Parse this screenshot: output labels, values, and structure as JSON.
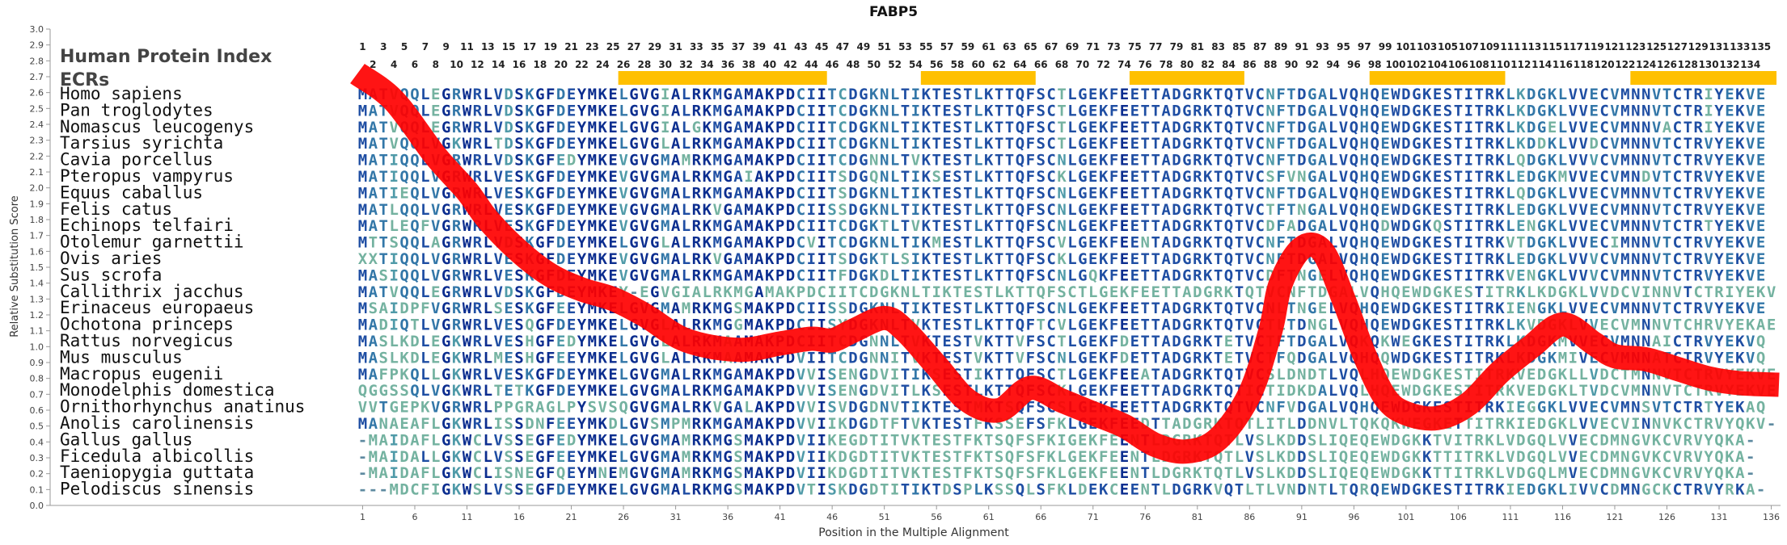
{
  "chart_data": {
    "type": "sequence-alignment",
    "title": "FABP5",
    "xlabel": "Position in the Multiple Alignment",
    "ylabel": "Relative Substitution Score",
    "ylim": [
      0,
      3.0
    ],
    "yticks": [
      "0.0",
      "0.1",
      "0.2",
      "0.3",
      "0.4",
      "0.5",
      "0.6",
      "0.7",
      "0.8",
      "0.9",
      "1.0",
      "1.1",
      "1.2",
      "1.3",
      "1.4",
      "1.5",
      "1.6",
      "1.7",
      "1.8",
      "1.9",
      "2.0",
      "2.1",
      "2.2",
      "2.3",
      "2.4",
      "2.5",
      "2.6",
      "2.7",
      "2.8",
      "2.9",
      "3.0"
    ],
    "xticks": [
      "1",
      "6",
      "11",
      "16",
      "21",
      "26",
      "31",
      "36",
      "41",
      "46",
      "51",
      "56",
      "61",
      "66",
      "71",
      "76",
      "81",
      "86",
      "91",
      "96",
      "101",
      "106",
      "111",
      "116",
      "121",
      "126",
      "131",
      "136"
    ],
    "human_index_label": "Human Protein Index",
    "ecr_label": "ECRs",
    "index_odd": [
      "1",
      "3",
      "5",
      "7",
      "9",
      "11",
      "13",
      "15",
      "17",
      "19",
      "21",
      "23",
      "25",
      "27",
      "29",
      "31",
      "33",
      "35",
      "37",
      "39",
      "41",
      "43",
      "45",
      "47",
      "49",
      "51",
      "53",
      "55",
      "57",
      "59",
      "61",
      "63",
      "65",
      "67",
      "69",
      "71",
      "73",
      "75",
      "77",
      "79",
      "81",
      "83",
      "85",
      "87",
      "89",
      "91",
      "93",
      "95",
      "97",
      "99",
      "101",
      "103",
      "105",
      "107",
      "109",
      "111",
      "113",
      "115",
      "117",
      "119",
      "121",
      "123",
      "125",
      "127",
      "129",
      "131",
      "133",
      "135"
    ],
    "index_even": [
      "2",
      "4",
      "6",
      "8",
      "10",
      "12",
      "14",
      "16",
      "18",
      "20",
      "22",
      "24",
      "26",
      "28",
      "30",
      "32",
      "34",
      "36",
      "38",
      "40",
      "42",
      "44",
      "46",
      "48",
      "50",
      "52",
      "54",
      "56",
      "58",
      "60",
      "62",
      "64",
      "66",
      "68",
      "70",
      "72",
      "74",
      "76",
      "78",
      "80",
      "82",
      "84",
      "86",
      "88",
      "90",
      "92",
      "94",
      "96",
      "98",
      "100",
      "102",
      "104",
      "106",
      "108",
      "110",
      "112",
      "114",
      "116",
      "118",
      "120",
      "122",
      "124",
      "126",
      "128",
      "130",
      "132",
      "134"
    ],
    "ecr_regions": [
      [
        26,
        45
      ],
      [
        55,
        65
      ],
      [
        75,
        85
      ],
      [
        98,
        110
      ],
      [
        123,
        136
      ]
    ],
    "species": [
      {
        "name": "Homo sapiens",
        "seq": "MATVQQLEGRWRLVDSKGFDEYMKELGVGIALRKMGAMAKPDCIITCDGKNLTIKTESTLKTTQFSCTLGEKFEETTADGRKTQTVCNFTDGALVQHQEWDGKESTITRKLKDGKLVVECVMNNVTCTRIYEKVE"
      },
      {
        "name": "Pan troglodytes",
        "seq": "MATVQQLEGRWRLVDSKGFDEYMKELGVGIALRKMGAMAKPDCIITCDGKNLTIKTESTLKTTQFSCTLGEKFEETTADGRKTQTVCNFTDGALVQHQEWDGKESTITRKLKDGKLVVECVMNNVTCTRIYEKVE"
      },
      {
        "name": "Nomascus leucogenys",
        "seq": "MATVQQLEGRWRLVDSKGFDEYMKELGVGIALGKMGAMAKPDCIITCDGKNLTIKTESTLKTTQFSCTLGEKFEETTADGRKTQTVCNFTDGALVQHQEWDGKESTITRKLKDGELVVECVMNNVACTRIYEKVE"
      },
      {
        "name": "Tarsius syrichta",
        "seq": "MATVQQLVGKWRLTDSKGFDEYMKELGVGLALRKMGAMAKPDCIITCDGKNLTIKTESTLKTTQFSCTLGEKFEETTADGRKTQTVCNFTDGALVQHQEWDGKESTITRKLKDDKLVVDCVMNNVTCTRVYEKVE"
      },
      {
        "name": "Cavia porcellus",
        "seq": "MATIQQLVGRWRLVDSKGFEDYMKEVGVGMAMRKMGAMAKPDCIITCDGNNLTVKTESTLKTTQFSCNLGEKFEETTADGRKTQTVCNFTDGALVQHQEWDGKESTITRKLQDGKLVVVCVMNNVTCTRVYEKVE"
      },
      {
        "name": "Pteropus vampyrus",
        "seq": "MATIQQLVGRWRLVESKGFDEYMKEVGVGMALRKMGAIAKPDCIITSDGQNLTIKSESTLKTTQFSCKLGEKFEETTADGRKTQTVCSFVNGALVQHQEWDGKESTITRKLEDGKMVVECVMNDVTCTRVYEKVE"
      },
      {
        "name": "Equus caballus",
        "seq": "MATIEQLVGRWRLVESKGFDEYMKEVGVGMALRKMGAMAKPDCIITSDGKNLTIKTESTLKTTQFSCNLGEKFEETTADGRKTQTVCNFTDGALVQHQEWDGKESTITRKLQDGKLVVECVMNNVTCTRVYEKVE"
      },
      {
        "name": "Felis catus",
        "seq": "MATLQQLVGRWRLVESKGFDEYMKEVGVGMALRKVGAMAKPDCIISSDGKNLTIKTESTLKTTQFSCNLGEKFEETTADGRKTQTVCTFTNGALVQHQEWDGKESTITRKLEDGKLVVECVMNNVTCTRVYEKVE"
      },
      {
        "name": "Echinops telfairi",
        "seq": "MATLEQFVGRWRLVESKGFDEYMKEVGVGMALRKMGAMAKPDCIITCDGKTLTVKTESTLKTTQFSCNLGEKFEETTADGRKTQTVCDFADGALVQHQDWDGKQSTITRKLENGKLVVECVMNNVTCTRTYEKVE"
      },
      {
        "name": "Otolemur garnettii",
        "seq": "MTTSQQLAGRWRLVDSKGFDEYMKELGVGLALRKMGAMAKPDCVITCDGKNLTIKMESTLKTTQFSCVLGEKFEENTADGRKTQTVCNFTDGALVQHQEWDGKESTITRKVTDGKLVVECIMNNVTCTRVYEKVE"
      },
      {
        "name": "Ovis aries",
        "seq": "XXTIQQLVGRWRLVESKGFDEYMKEVGVGMALRKVGAMAKPDCIITSDGKTLSIKTESTLKTTQFSCKLGEKFEETTADGRKTQTVCNFTDGALVQHQEWDGKESTITRKLEDGKLVVVCVMNNVTCTRVYEKVE"
      },
      {
        "name": "Sus scrofa",
        "seq": "MASIQQLVGRWRLVESKGFDEYMKEVGVGMALRKMGAMAKPDCIITFDGKDLTIKTESTLKTTQFSCNLGQKFEETTADGRKTQTVCDFTNGELVQHQEWDGKESTITRKVENGKLVVVCVMNNVTCTRVYEKVE"
      },
      {
        "name": "Callithrix jacchus",
        "seq": "MATVQQLEGRWRLVDSKGFDEYMKEY-EGVGIALRKMGAMAKPDCIITCDGKNLTIKTESTLKTTQFSCTLGEKFEETTADGRKTQTVCNFTDGALVQHQEWDGKESTITRKLKDGKLVVDCVINNVTCTRIYEKVE"
      },
      {
        "name": "Erinaceus europaeus",
        "seq": "MSAIDPFVGRWRLSESKGFEEYMKELGVGMAMRKMGSMAKPDCIISSDGKNLTIKTESTLKTTQFSCNLGEKFEETTADGRKTQTVCNLTNGELVQHQEWDGKESTITRKIENGKLVVECVMNNVTCTRVYEKVE"
      },
      {
        "name": "Ochotona princeps",
        "seq": "MADIQTLVGRWRLVESQGFDEYMKELGVGLALRKMGGMAKPDCIISYDGKNLTVKTESTLKTTQFTCVLGEKFEETTADGRKTQTVCTLTDNGLVQHQEWDGKESTITRKLKVDGKLVVECVMNNVTCHRVYEKAE"
      },
      {
        "name": "Rattus norvegicus",
        "seq": "MASLKDLEGKWRLVESHGFEDYMKELGVGLALRKMAAMAKPDCIITCDGNNLTVKTESTVKTTVFSCTLGEKFDETTADGRKTETVCTFTDGALVQKQKWEGKESTITRKLKDGKMVVECVMNNAICTRVYEKVQ"
      },
      {
        "name": "Mus musculus",
        "seq": "MASLKDLEGKWRLMESHGFEEYMKELGVGLALRKMAAMAKPDVIITCDGNNITVKTESTVKTTVFSCNLGEKFDETTADGRKTETVCTFQDGALVQHQQWDGKESTITRKLKDGKMIVECVMNNATCTRVYEKVQ"
      },
      {
        "name": "Macropus eugenii",
        "seq": "MAFPKQLLGKWRLVESKGFDEYMKELGVGMALRKMGAMAKPDVVISENGDVITIKSESTIKTTQFSCTLGEKFEEATADGRKTQTVCSLDNDTLVQLHQEWDGKESTITRKVEDGKLLVDCTMNNVTCTRVYEKVE"
      },
      {
        "name": "Monodelphis domestica",
        "seq": "QGGSSQLVGKWRLTETKGFDEYMKELGVGMALRKMGAMAKPDVVISENGDVITLKSESTLKTTQFSCKLGEKFEETTADGRKTQTICTIDKDALVQLHQEWDGKESTITRKVEDGKLTVDCVMNNVTCTRVYEKVE"
      },
      {
        "name": "Ornithorhynchus anatinus",
        "seq": "VVTGEPKVGRWRLPPGRAGLPYSVSQGVGMALRKVGALAKPDVVISVDGDNVTIKTESTMKTSQFSCSLGEKFEETTADGRKTQTVCNFVDGALVQHQEWDGKESTITRKIEGGKLVVECVMNSVTCTRTYEKAQ"
      },
      {
        "name": "Anolis carolinensis",
        "seq": "MANAEAFLGKWRLISSDNFEEYMKDLGVSMPMRKMGAMAKPDVVIIKDGDTFTVKTESTFKSSEFSFKLGEKFEEDTTADGRKTQTLITLDDNVLTQKQKWEGKETTITRKIEDGKLVVECVINNVKCTRVYQKV-"
      },
      {
        "name": "Gallus gallus",
        "seq": "-MAIDAFLGKWCLVSSEGFEDYMKELGVGMAMRKMGSMAKPDVIIKEGDTITVKTESTFKTSQFSFKIGEKFEENTLDGRKTQTLVSLKDDSLIQEQEWDGKKTVITRKLVDGQLVVECDMNGVKCVRVYQKA-"
      },
      {
        "name": "Ficedula albicollis",
        "seq": "-MAIDALLGKWCLVSSEGFEEYMKELGVGMAMRKMGSMAKPDVIIKDGDTITVKTESTFKTSQFSFKLGEKFEENTLDGRKTQTLVSLKDDSLIQEQEWDGKKTTITRKLVDGQLVVECDMNGVKCVRVYQKA-"
      },
      {
        "name": "Taeniopygia guttata",
        "seq": "-MAIDAFLGKWCLISNEGFQEYMNEMGVGMAMRKMGSMAKPDVIIKDGDTITVKTESTFKTSQFSFKLGEKFEENTLDGRKTQTLVSLKDDSLIQEQEWDGKKTTITRKLVDGQLMVECDMNGVKCVRVYQKA-"
      },
      {
        "name": "Pelodiscus sinensis",
        "seq": "---MDCFIGKWSLVSSEGFDEYMKELGVGMALRKMGSMAKPDVTISKDGDTITIKTDSPLKSSQLSFKLDEKCEENTLDGRKVQTLTLVNDNTLTQRQEWDGKESTITRKIEDGKLIVVCDMNGCKCTRVYRKA-"
      }
    ],
    "conservation_curve": [
      [
        1,
        2.72
      ],
      [
        4,
        2.55
      ],
      [
        8,
        2.2
      ],
      [
        11,
        1.98
      ],
      [
        13,
        1.8
      ],
      [
        16,
        1.6
      ],
      [
        19,
        1.45
      ],
      [
        22,
        1.36
      ],
      [
        25,
        1.3
      ],
      [
        28,
        1.2
      ],
      [
        32,
        1.04
      ],
      [
        37,
        0.98
      ],
      [
        41,
        1.02
      ],
      [
        44,
        1.05
      ],
      [
        46,
        1.04
      ],
      [
        48,
        1.1
      ],
      [
        51,
        1.18
      ],
      [
        53,
        1.1
      ],
      [
        56,
        0.88
      ],
      [
        59,
        0.66
      ],
      [
        62,
        0.6
      ],
      [
        65,
        0.74
      ],
      [
        68,
        0.66
      ],
      [
        71,
        0.58
      ],
      [
        74,
        0.5
      ],
      [
        77,
        0.38
      ],
      [
        80,
        0.34
      ],
      [
        83,
        0.42
      ],
      [
        86,
        0.7
      ],
      [
        88,
        1.1
      ],
      [
        89,
        1.4
      ],
      [
        91,
        1.62
      ],
      [
        93,
        1.6
      ],
      [
        95,
        1.3
      ],
      [
        97,
        0.95
      ],
      [
        99,
        0.68
      ],
      [
        101,
        0.58
      ],
      [
        104,
        0.55
      ],
      [
        107,
        0.64
      ],
      [
        110,
        0.84
      ],
      [
        113,
        1.0
      ],
      [
        116,
        1.14
      ],
      [
        119,
        1.02
      ],
      [
        121,
        0.94
      ],
      [
        124,
        0.92
      ],
      [
        127,
        0.86
      ],
      [
        130,
        0.8
      ],
      [
        133,
        0.77
      ],
      [
        136,
        0.76
      ]
    ]
  }
}
